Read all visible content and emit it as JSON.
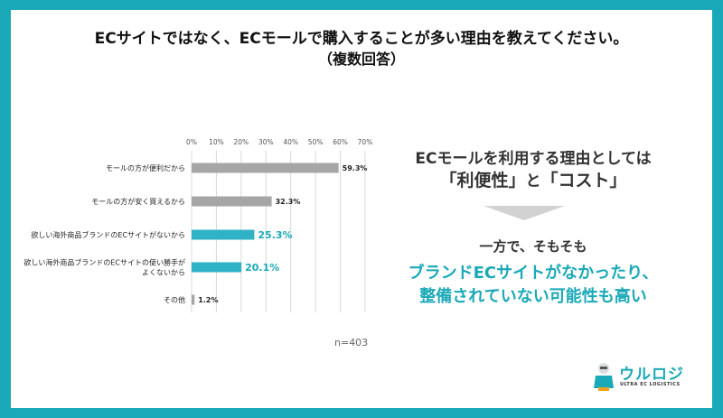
{
  "title": {
    "line1": "ECサイトではなく、ECモールで購入することが多い理由を教えてください。",
    "line2": "（複数回答）"
  },
  "chart_data": {
    "type": "bar",
    "orientation": "horizontal",
    "xlim": [
      0,
      70
    ],
    "ticks": [
      "0%",
      "10%",
      "20%",
      "30%",
      "40%",
      "50%",
      "60%",
      "70%"
    ],
    "grid": true,
    "categories": [
      [
        "モールの方が便利だから"
      ],
      [
        "モールの方が安く買えるから"
      ],
      [
        "欲しい海外商品ブランドのECサイトがないから"
      ],
      [
        "欲しい海外商品ブランドのECサイトの使い勝手が",
        "よくないから"
      ],
      [
        "その他"
      ]
    ],
    "values": [
      59.3,
      32.3,
      25.3,
      20.1,
      1.2
    ],
    "value_labels": [
      "59.3%",
      "32.3%",
      "25.3%",
      "20.1%",
      "1.2%"
    ],
    "highlighted": [
      false,
      false,
      true,
      true,
      false
    ],
    "colors": {
      "normal": "#a6a6a6",
      "highlight": "#2fb2c6"
    }
  },
  "footnote": "n=403",
  "side_text": {
    "line1": "ECモールを利用する理由としては",
    "line2_a": "「利便性」",
    "line2_b": "と",
    "line2_c": "「コスト」",
    "line3": "一方で、そもそも",
    "line4": "ブランドECサイトがなかったり、",
    "line5": "整備されていない可能性も高い"
  },
  "logo": {
    "name": "ウルロジ",
    "sub": "ULTRA EC LOGISTICS"
  },
  "colors": {
    "frame": "#1aa9b8",
    "accent": "#1aa9b8",
    "arrow": "#d2d2d2"
  }
}
